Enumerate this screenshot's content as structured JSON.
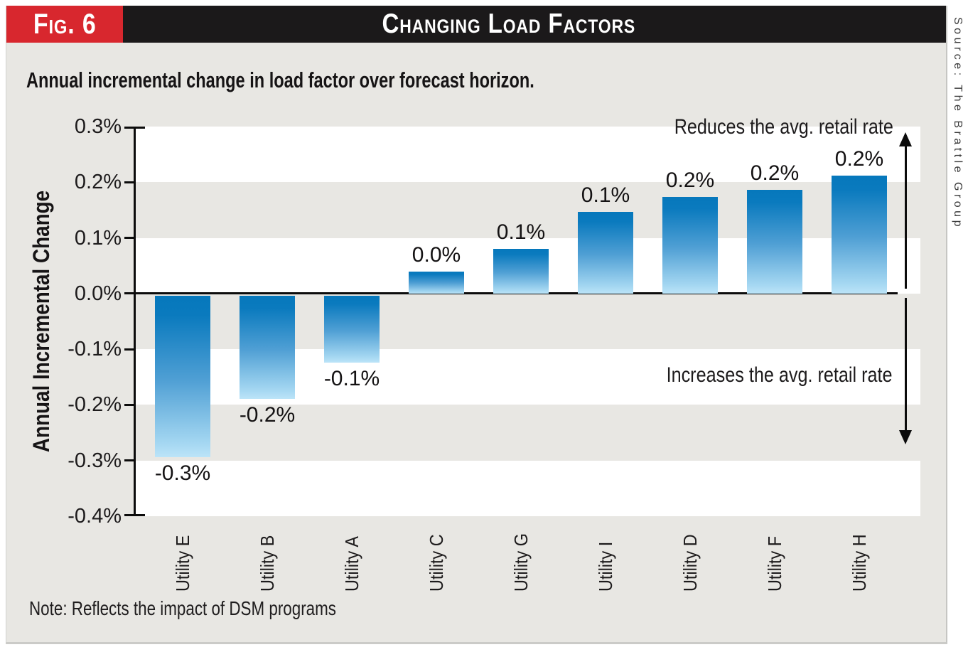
{
  "figure": {
    "fig_label": "Fig. 6",
    "title": "Changing Load Factors",
    "subtitle": "Annual incremental change in load factor over forecast horizon.",
    "note": "Note: Reflects the impact of DSM programs",
    "source": "Source: The Brattle Group"
  },
  "annotations": {
    "reduces": "Reduces the avg. retail rate",
    "increases": "Increases the avg. retail rate"
  },
  "colors": {
    "badge_red": "#d8272e",
    "header_black": "#1b191a",
    "panel_background": "#e8e7e3",
    "band_white": "#ffffff",
    "bar_gradient_top": "#0678bc",
    "bar_gradient_bottom": "#bce4f8",
    "axis_black": "#0c0c0c"
  },
  "chart_data": {
    "type": "bar",
    "title": "Changing Load Factors",
    "subtitle": "Annual incremental change in load factor over forecast horizon.",
    "ylabel": "Annual Incremental Change",
    "ylim": [
      -0.4,
      0.3
    ],
    "ytick_step": 0.1,
    "ytick_labels": [
      "0.3%",
      "0.2%",
      "0.1%",
      "0.0%",
      "-0.1%",
      "-0.2%",
      "-0.3%",
      "-0.4%"
    ],
    "categories": [
      "Utility E",
      "Utility B",
      "Utility A",
      "Utility C",
      "Utility G",
      "Utility I",
      "Utility D",
      "Utility F",
      "Utility H"
    ],
    "values": [
      -0.29,
      -0.185,
      -0.12,
      0.04,
      0.08,
      0.147,
      0.174,
      0.186,
      0.212
    ],
    "bar_labels": [
      "-0.3%",
      "-0.2%",
      "-0.1%",
      "0.0%",
      "0.1%",
      "0.1%",
      "0.2%",
      "0.2%",
      "0.2%"
    ],
    "grid": "horizontal bands alternating white and gray every 0.1%",
    "legend_position": "none",
    "annotations": [
      "Reduces the avg. retail rate",
      "Increases the avg. retail rate"
    ]
  }
}
